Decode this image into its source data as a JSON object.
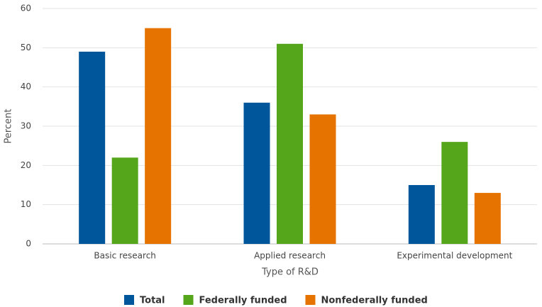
{
  "chart_data": {
    "type": "bar",
    "x_label": "Type of R&D",
    "y_label": "Percent",
    "categories": [
      "Basic research",
      "Applied research",
      "Experimental development"
    ],
    "series": [
      {
        "name": "Total",
        "color": "#00569a",
        "values": [
          49,
          36,
          15
        ]
      },
      {
        "name": "Federally funded",
        "color": "#56a61c",
        "values": [
          22,
          51,
          26
        ]
      },
      {
        "name": "Nonfederally funded",
        "color": "#e67300",
        "values": [
          55,
          33,
          13
        ]
      }
    ],
    "ylim": [
      0,
      60
    ],
    "yticks": [
      0,
      10,
      20,
      30,
      40,
      50,
      60
    ],
    "grid": true,
    "legend": "bottom"
  }
}
